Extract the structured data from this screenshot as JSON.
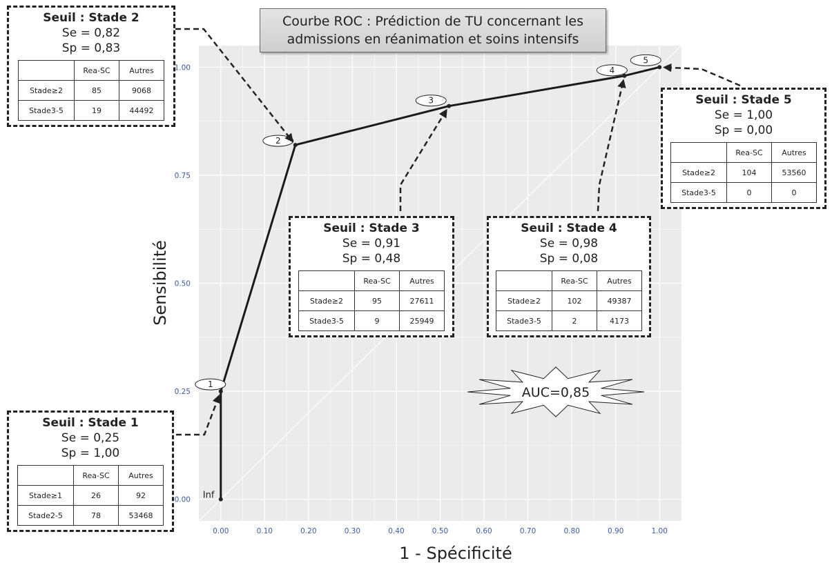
{
  "title": {
    "line1": "Courbe ROC : Prédiction de TU concernant les",
    "line2": "admissions en réanimation et soins intensifs"
  },
  "xlabel": "1 - Spécificité",
  "ylabel": "Sensibilité",
  "auc_label": "AUC=0,85",
  "colors": {
    "panel": "#ebebeb",
    "grid": "#ffffff",
    "curve": "#1a1a1a",
    "tick_text": "#3b5aa5"
  },
  "chart_data": {
    "type": "line",
    "title": "",
    "xlabel": "1 - Spécificité",
    "ylabel": "Sensibilité",
    "xlim": [
      -0.05,
      1.05
    ],
    "ylim": [
      -0.05,
      1.05
    ],
    "xticks": [
      0.0,
      0.1,
      0.2,
      0.3,
      0.4,
      0.5,
      0.6,
      0.7,
      0.8,
      0.9,
      1.0
    ],
    "xtick_labels": [
      "0.00",
      "0.10",
      "0.20",
      "0.30",
      "0.40",
      "0.50",
      "0.60",
      "0.70",
      "0.80",
      "0.90",
      "1.00"
    ],
    "yticks": [
      0.0,
      0.25,
      0.5,
      0.75,
      1.0
    ],
    "ytick_labels": [
      "0.00",
      "0.25",
      "0.50",
      "0.75",
      "1.00"
    ],
    "grid": true,
    "diagonal": true,
    "points": [
      {
        "label": "Inf",
        "x": 0.0,
        "y": 0.0
      },
      {
        "label": "1",
        "x": 0.0,
        "y": 0.25
      },
      {
        "label": "2",
        "x": 0.17,
        "y": 0.82
      },
      {
        "label": "3",
        "x": 0.52,
        "y": 0.91
      },
      {
        "label": "4",
        "x": 0.92,
        "y": 0.98
      },
      {
        "label": "5",
        "x": 1.0,
        "y": 1.0
      }
    ],
    "auc": "AUC=0,85"
  },
  "boxes": [
    {
      "id": "stade2",
      "title": "Seuil : Stade 2",
      "se": "Se = 0,82",
      "sp": "Sp = 0,83",
      "header": [
        "",
        "Rea-SC",
        "Autres"
      ],
      "rows": [
        [
          "Stade≥2",
          "85",
          "9068"
        ],
        [
          "Stade3-5",
          "19",
          "44492"
        ]
      ]
    },
    {
      "id": "stade3",
      "title": "Seuil : Stade 3",
      "se": "Se = 0,91",
      "sp": "Sp = 0,48",
      "header": [
        "",
        "Rea-SC",
        "Autres"
      ],
      "rows": [
        [
          "Stade≥2",
          "95",
          "27611"
        ],
        [
          "Stade3-5",
          "9",
          "25949"
        ]
      ]
    },
    {
      "id": "stade4",
      "title": "Seuil : Stade 4",
      "se": "Se = 0,98",
      "sp": "Sp = 0,08",
      "header": [
        "",
        "Rea-SC",
        "Autres"
      ],
      "rows": [
        [
          "Stade≥2",
          "102",
          "49387"
        ],
        [
          "Stade3-5",
          "2",
          "4173"
        ]
      ]
    },
    {
      "id": "stade5",
      "title": "Seuil : Stade 5",
      "se": "Se = 1,00",
      "sp": "Sp = 0,00",
      "header": [
        "",
        "Rea-SC",
        "Autres"
      ],
      "rows": [
        [
          "Stade≥2",
          "104",
          "53560"
        ],
        [
          "Stade3-5",
          "0",
          "0"
        ]
      ]
    },
    {
      "id": "stade1",
      "title": "Seuil : Stade 1",
      "se": "Se = 0,25",
      "sp": "Sp = 1,00",
      "header": [
        "",
        "Rea-SC",
        "Autres"
      ],
      "rows": [
        [
          "Stade≥1",
          "26",
          "92"
        ],
        [
          "Stade2-5",
          "78",
          "53468"
        ]
      ]
    }
  ]
}
